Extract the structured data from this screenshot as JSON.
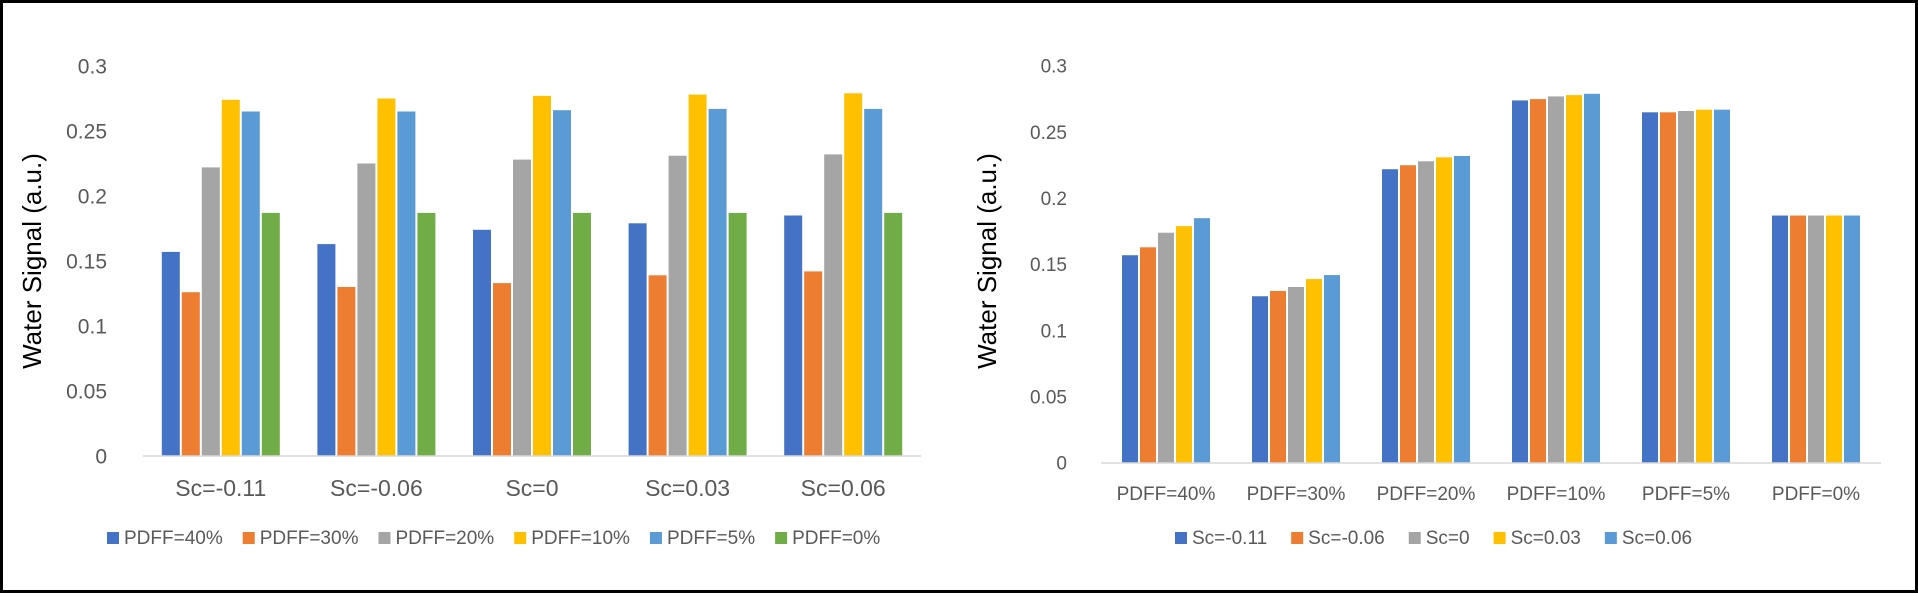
{
  "colors": {
    "c40": "#4472C4",
    "c30": "#ED7D31",
    "c20": "#A5A5A5",
    "c10": "#FFC000",
    "c5": "#5B9BD5",
    "c0": "#70AD47",
    "axis_text": "#595959",
    "axis_line": "#D9D9D9"
  },
  "chart_data": [
    {
      "type": "bar",
      "ylabel": "Water Signal (a.u.)",
      "xlabel": "",
      "ylim": [
        0,
        0.3
      ],
      "yticks": [
        "0",
        "0.05",
        "0.1",
        "0.15",
        "0.2",
        "0.25",
        "0.3"
      ],
      "categories": [
        "Sc=-0.11",
        "Sc=-0.06",
        "Sc=0",
        "Sc=0.03",
        "Sc=0.06"
      ],
      "legend_position": "bottom",
      "series": [
        {
          "name": "PDFF=40%",
          "color": "#4472C4",
          "values": [
            0.157,
            0.163,
            0.174,
            0.179,
            0.185
          ]
        },
        {
          "name": "PDFF=30%",
          "color": "#ED7D31",
          "values": [
            0.126,
            0.13,
            0.133,
            0.139,
            0.142
          ]
        },
        {
          "name": "PDFF=20%",
          "color": "#A5A5A5",
          "values": [
            0.222,
            0.225,
            0.228,
            0.231,
            0.232
          ]
        },
        {
          "name": "PDFF=10%",
          "color": "#FFC000",
          "values": [
            0.274,
            0.275,
            0.277,
            0.278,
            0.279
          ]
        },
        {
          "name": "PDFF=5%",
          "color": "#5B9BD5",
          "values": [
            0.265,
            0.265,
            0.266,
            0.267,
            0.267
          ]
        },
        {
          "name": "PDFF=0%",
          "color": "#70AD47",
          "values": [
            0.187,
            0.187,
            0.187,
            0.187,
            0.187
          ]
        }
      ]
    },
    {
      "type": "bar",
      "ylabel": "Water Signal (a.u.)",
      "xlabel": "",
      "ylim": [
        0,
        0.3
      ],
      "yticks": [
        "0",
        "0.05",
        "0.1",
        "0.15",
        "0.2",
        "0.25",
        "0.3"
      ],
      "categories": [
        "PDFF=40%",
        "PDFF=30%",
        "PDFF=20%",
        "PDFF=10%",
        "PDFF=5%",
        "PDFF=0%"
      ],
      "legend_position": "bottom",
      "series": [
        {
          "name": "Sc=-0.11",
          "color": "#4472C4",
          "values": [
            0.157,
            0.126,
            0.222,
            0.274,
            0.265,
            0.187
          ]
        },
        {
          "name": "Sc=-0.06",
          "color": "#ED7D31",
          "values": [
            0.163,
            0.13,
            0.225,
            0.275,
            0.265,
            0.187
          ]
        },
        {
          "name": "Sc=0",
          "color": "#A5A5A5",
          "values": [
            0.174,
            0.133,
            0.228,
            0.277,
            0.266,
            0.187
          ]
        },
        {
          "name": "Sc=0.03",
          "color": "#FFC000",
          "values": [
            0.179,
            0.139,
            0.231,
            0.278,
            0.267,
            0.187
          ]
        },
        {
          "name": "Sc=0.06",
          "color": "#5B9BD5",
          "values": [
            0.185,
            0.142,
            0.232,
            0.279,
            0.267,
            0.187
          ]
        }
      ]
    }
  ]
}
